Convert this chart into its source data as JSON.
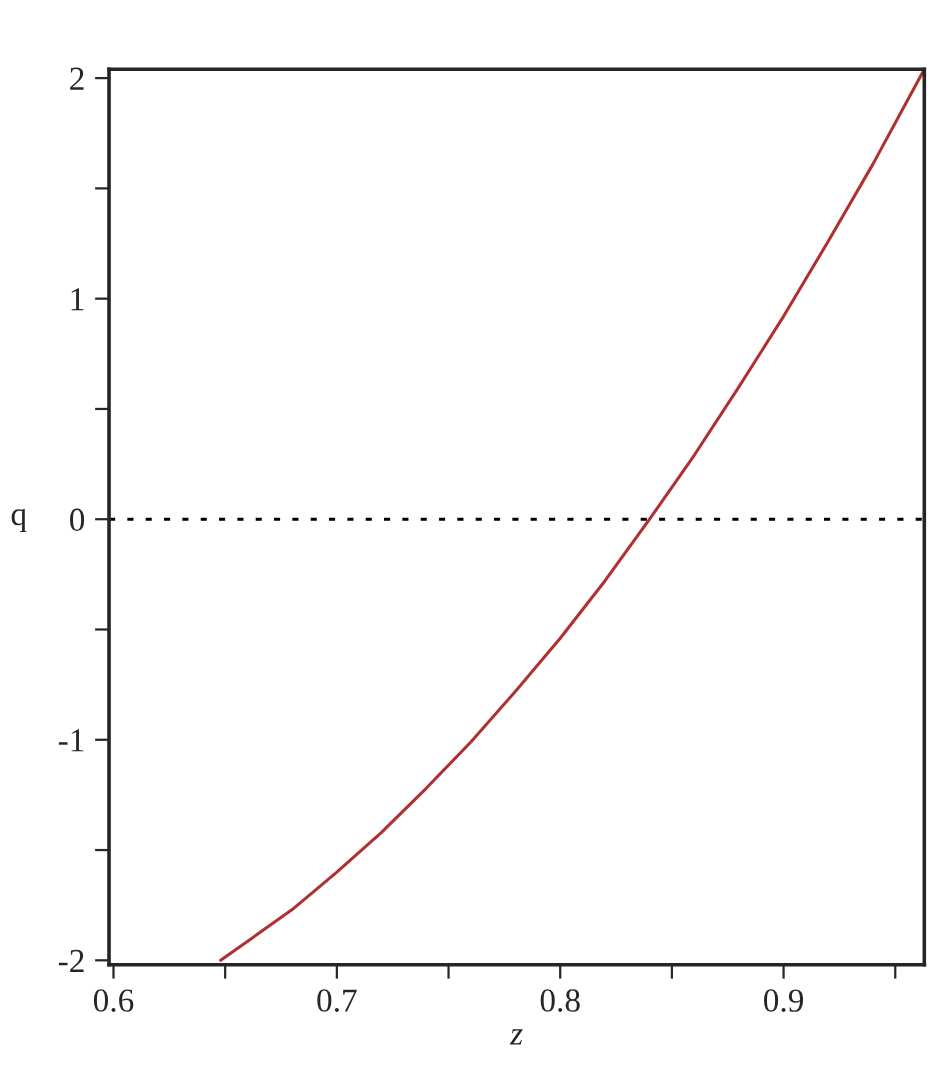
{
  "chart_data": {
    "type": "line",
    "xlabel": "z",
    "ylabel": "q",
    "x": [
      0.648,
      0.68,
      0.7,
      0.72,
      0.74,
      0.76,
      0.78,
      0.8,
      0.82,
      0.84,
      0.86,
      0.88,
      0.9,
      0.92,
      0.94,
      0.963
    ],
    "series": [
      {
        "color": "#b03030",
        "values": [
          -2.0,
          -1.77,
          -1.6,
          -1.42,
          -1.22,
          -1.01,
          -0.78,
          -0.54,
          -0.28,
          0.0,
          0.29,
          0.6,
          0.92,
          1.26,
          1.61,
          2.04
        ]
      }
    ],
    "xlim": [
      0.598,
      0.963
    ],
    "ylim": [
      -2.02,
      2.04
    ],
    "xticks": [
      0.6,
      {
        "value": 0.65,
        "label": null
      },
      0.7,
      {
        "value": 0.75,
        "label": null
      },
      0.8,
      {
        "value": 0.85,
        "label": null
      },
      0.9,
      {
        "value": 0.95,
        "label": null
      }
    ],
    "yticks": [
      -2,
      {
        "value": -1.5,
        "label": null
      },
      -1,
      {
        "value": -0.5,
        "label": null
      },
      0,
      {
        "value": 0.5,
        "label": null
      },
      1,
      {
        "value": 1.5,
        "label": null
      },
      2
    ],
    "ref_lines": [
      {
        "axis": "y",
        "value": 0,
        "color": "#000000",
        "line_style": "dotted"
      }
    ],
    "grid": false,
    "legend": false
  }
}
